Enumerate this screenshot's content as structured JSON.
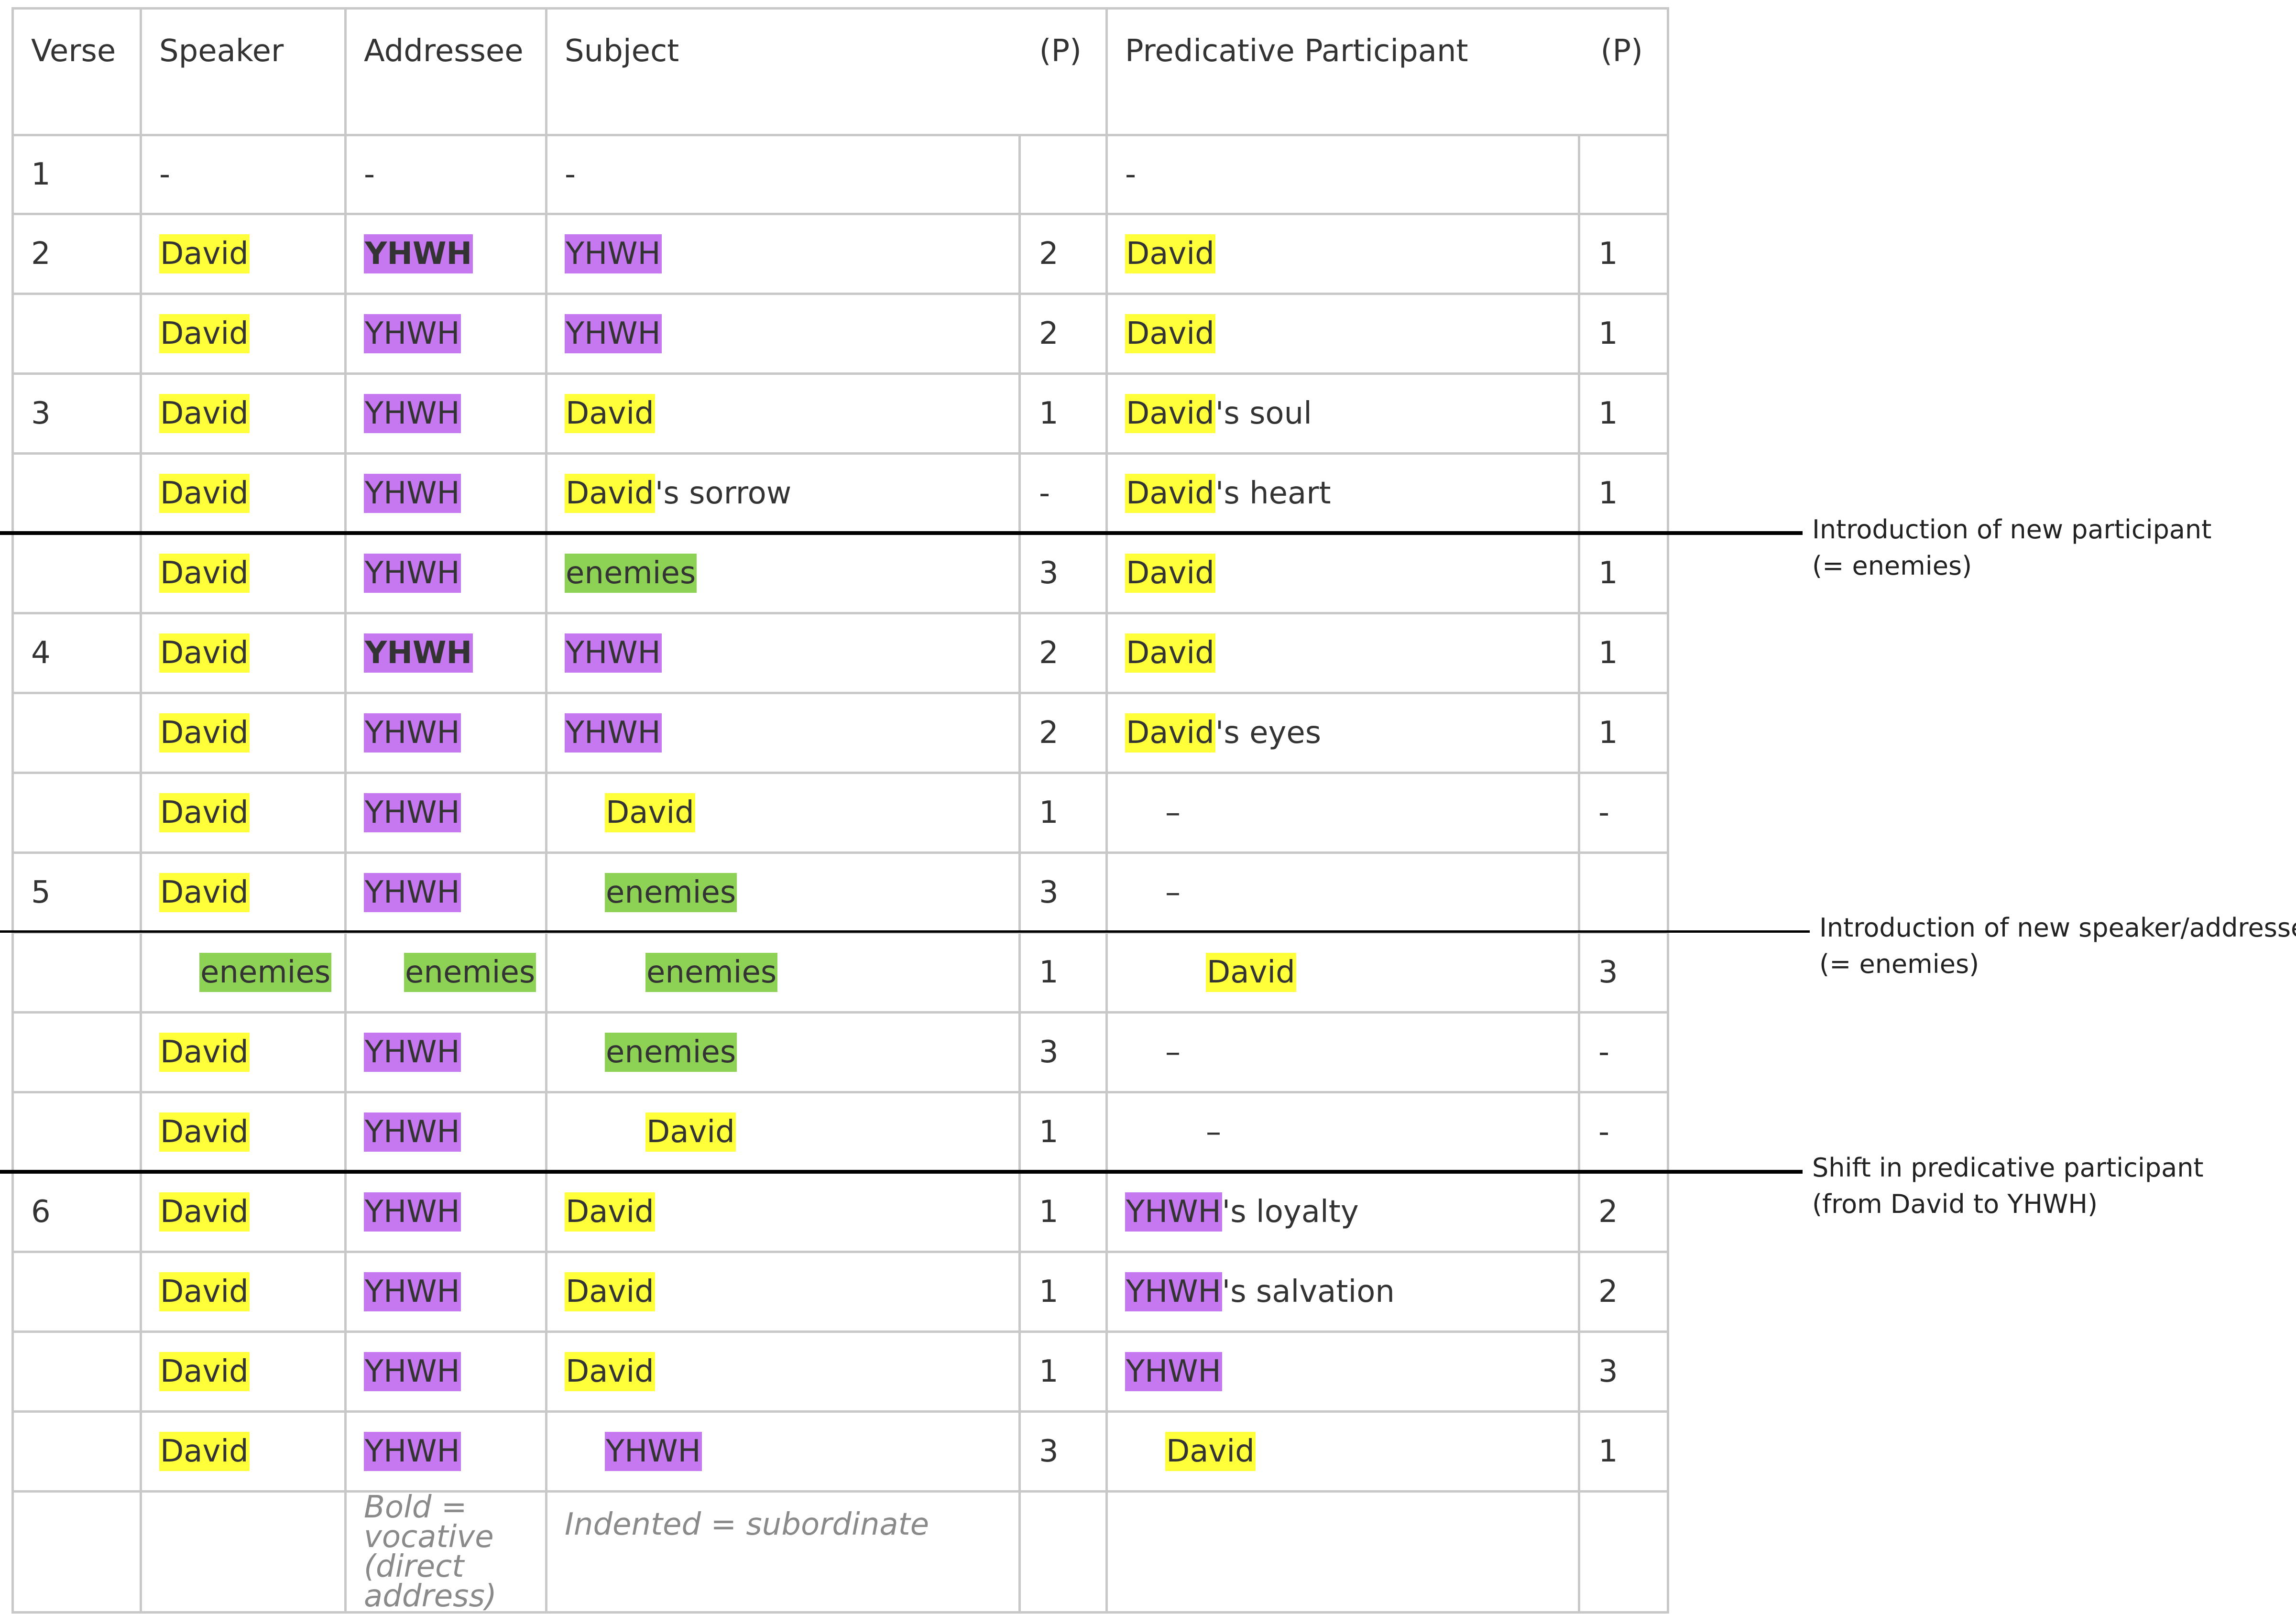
{
  "headers": {
    "verse": "Verse",
    "speaker": "Speaker",
    "addressee": "Addressee",
    "subject": "Subject",
    "subject_p": "(P)",
    "predicative": "Predicative Participant",
    "predicative_p": "(P)"
  },
  "rows": [
    {
      "verse": "1",
      "speaker": "-",
      "addressee": "-",
      "subject": "-",
      "subject_p": "",
      "pred": "-",
      "pred_suffix": "",
      "pred_p": ""
    },
    {
      "verse": "2",
      "speaker": "David",
      "addressee": "YHWH",
      "subject": "YHWH",
      "subject_p": "2",
      "pred": "David",
      "pred_suffix": "",
      "pred_p": "1"
    },
    {
      "verse": "",
      "speaker": "David",
      "addressee": "YHWH",
      "subject": "YHWH",
      "subject_p": "2",
      "pred": "David",
      "pred_suffix": "",
      "pred_p": "1"
    },
    {
      "verse": "3",
      "speaker": "David",
      "addressee": "YHWH",
      "subject": "David",
      "subject_p": "1",
      "pred": "David",
      "pred_suffix": "'s soul",
      "pred_p": "1"
    },
    {
      "verse": "",
      "speaker": "David",
      "addressee": "YHWH",
      "subject": "David",
      "subject_suffix": "'s sorrow",
      "subject_p": "-",
      "pred": "David",
      "pred_suffix": "'s heart",
      "pred_p": "1"
    },
    {
      "verse": "",
      "speaker": "David",
      "addressee": "YHWH",
      "subject": "enemies",
      "subject_p": "3",
      "pred": "David",
      "pred_suffix": "",
      "pred_p": "1"
    },
    {
      "verse": "4",
      "speaker": "David",
      "addressee": "YHWH",
      "subject": "YHWH",
      "subject_p": "2",
      "pred": "David",
      "pred_suffix": "",
      "pred_p": "1"
    },
    {
      "verse": "",
      "speaker": "David",
      "addressee": "YHWH",
      "subject": "YHWH",
      "subject_p": "2",
      "pred": "David",
      "pred_suffix": "'s eyes",
      "pred_p": "1"
    },
    {
      "verse": "",
      "speaker": "David",
      "addressee": "YHWH",
      "subject": "David",
      "subject_p": "1",
      "pred": "–",
      "pred_suffix": "",
      "pred_p": "-"
    },
    {
      "verse": "5",
      "speaker": "David",
      "addressee": "YHWH",
      "subject": "enemies",
      "subject_p": "3",
      "pred": "–",
      "pred_suffix": "",
      "pred_p": ""
    },
    {
      "verse": "",
      "speaker": "enemies",
      "addressee": "enemies",
      "subject": "enemies",
      "subject_p": "1",
      "pred": "David",
      "pred_suffix": "",
      "pred_p": "3"
    },
    {
      "verse": "",
      "speaker": "David",
      "addressee": "YHWH",
      "subject": "enemies",
      "subject_p": "3",
      "pred": "–",
      "pred_suffix": "",
      "pred_p": "-"
    },
    {
      "verse": "",
      "speaker": "David",
      "addressee": "YHWH",
      "subject": "David",
      "subject_p": "1",
      "pred": "–",
      "pred_suffix": "",
      "pred_p": "-"
    },
    {
      "verse": "6",
      "speaker": "David",
      "addressee": "YHWH",
      "subject": "David",
      "subject_p": "1",
      "pred": "YHWH",
      "pred_suffix": "'s loyalty",
      "pred_p": "2"
    },
    {
      "verse": "",
      "speaker": "David",
      "addressee": "YHWH",
      "subject": "David",
      "subject_p": "1",
      "pred": "YHWH",
      "pred_suffix": "'s salvation",
      "pred_p": "2"
    },
    {
      "verse": "",
      "speaker": "David",
      "addressee": "YHWH",
      "subject": "David",
      "subject_p": "1",
      "pred": "YHWH",
      "pred_suffix": "",
      "pred_p": "3"
    },
    {
      "verse": "",
      "speaker": "David",
      "addressee": "YHWH",
      "subject": "YHWH",
      "subject_p": "3",
      "pred": "David",
      "pred_suffix": "",
      "pred_p": "1"
    }
  ],
  "notes": {
    "bold_note": "Bold = vocative (direct address)",
    "indent_note": "Indented = subordinate"
  },
  "annotations": [
    {
      "line1": "Introduction of new participant",
      "line2": "(= enemies)"
    },
    {
      "line1": "Introduction of new speaker/addressee",
      "line2": "(= enemies)"
    },
    {
      "line1": "Shift in predicative participant",
      "line2": "(from David to YHWH)"
    }
  ],
  "colors": {
    "david": "#ffff3a",
    "yhwh": "#c678f0",
    "enemies": "#8dd155"
  }
}
